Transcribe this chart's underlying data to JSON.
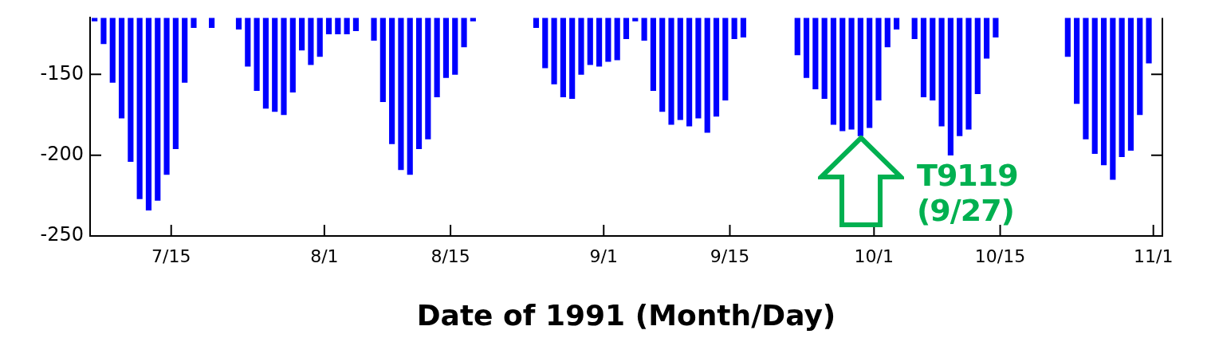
{
  "chart_data": {
    "type": "bar",
    "xlabel": "Date of 1991 (Month/Day)",
    "color": "#0000ff",
    "legend": false,
    "grid": false,
    "annotations": [
      "T9119\n(9/27)"
    ],
    "xlim": [
      "1991-07-06",
      "1991-11-02"
    ],
    "xticks": [
      {
        "value": "1991-07-15",
        "label": "7/15"
      },
      {
        "value": "1991-08-01",
        "label": "8/1"
      },
      {
        "value": "1991-08-15",
        "label": "8/15"
      },
      {
        "value": "1991-09-01",
        "label": "9/1"
      },
      {
        "value": "1991-09-15",
        "label": "9/15"
      },
      {
        "value": "1991-10-01",
        "label": "10/1"
      },
      {
        "value": "1991-10-15",
        "label": "10/15"
      },
      {
        "value": "1991-11-01",
        "label": "11/1"
      }
    ],
    "ylim": [
      -250,
      -115
    ],
    "yticks": [
      -150,
      -200,
      -250
    ],
    "x": [
      "1991-07-06T12:00",
      "1991-07-07T12:00",
      "1991-07-08T12:00",
      "1991-07-09T12:00",
      "1991-07-10T12:00",
      "1991-07-11T12:00",
      "1991-07-12T12:00",
      "1991-07-13T12:00",
      "1991-07-14T12:00",
      "1991-07-15T12:00",
      "1991-07-16T12:00",
      "1991-07-17T12:00",
      "1991-07-19T12:00",
      "1991-07-22T12:00",
      "1991-07-23T12:00",
      "1991-07-24T12:00",
      "1991-07-25T12:00",
      "1991-07-26T12:00",
      "1991-07-27T12:00",
      "1991-07-28T12:00",
      "1991-07-29T12:00",
      "1991-07-30T12:00",
      "1991-07-31T12:00",
      "1991-08-01T12:00",
      "1991-08-02T12:00",
      "1991-08-03T12:00",
      "1991-08-04T12:00",
      "1991-08-06T12:00",
      "1991-08-07T12:00",
      "1991-08-08T12:00",
      "1991-08-09T12:00",
      "1991-08-10T12:00",
      "1991-08-11T12:00",
      "1991-08-12T12:00",
      "1991-08-13T12:00",
      "1991-08-14T12:00",
      "1991-08-15T12:00",
      "1991-08-16T12:00",
      "1991-08-17T12:00",
      "1991-08-24T12:00",
      "1991-08-25T12:00",
      "1991-08-26T12:00",
      "1991-08-27T12:00",
      "1991-08-28T12:00",
      "1991-08-29T12:00",
      "1991-08-30T12:00",
      "1991-08-31T12:00",
      "1991-09-01T12:00",
      "1991-09-02T12:00",
      "1991-09-03T12:00",
      "1991-09-04T12:00",
      "1991-09-05T12:00",
      "1991-09-06T12:00",
      "1991-09-07T12:00",
      "1991-09-08T12:00",
      "1991-09-09T12:00",
      "1991-09-10T12:00",
      "1991-09-11T12:00",
      "1991-09-12T12:00",
      "1991-09-13T12:00",
      "1991-09-14T12:00",
      "1991-09-15T12:00",
      "1991-09-16T12:00",
      "1991-09-22T12:00",
      "1991-09-23T12:00",
      "1991-09-24T12:00",
      "1991-09-25T12:00",
      "1991-09-26T12:00",
      "1991-09-27T12:00",
      "1991-09-28T12:00",
      "1991-09-29T12:00",
      "1991-09-30T12:00",
      "1991-10-01T12:00",
      "1991-10-02T12:00",
      "1991-10-03T12:00",
      "1991-10-05T12:00",
      "1991-10-06T12:00",
      "1991-10-07T12:00",
      "1991-10-08T12:00",
      "1991-10-09T12:00",
      "1991-10-10T12:00",
      "1991-10-11T12:00",
      "1991-10-12T12:00",
      "1991-10-13T12:00",
      "1991-10-14T12:00",
      "1991-10-22T12:00",
      "1991-10-23T12:00",
      "1991-10-24T12:00",
      "1991-10-25T12:00",
      "1991-10-26T12:00",
      "1991-10-27T12:00",
      "1991-10-28T12:00",
      "1991-10-29T12:00",
      "1991-10-30T12:00",
      "1991-10-31T12:00"
    ],
    "values": [
      -117,
      -131,
      -155,
      -177,
      -204,
      -227,
      -234,
      -228,
      -212,
      -196,
      -155,
      -121,
      -121,
      -122,
      -145,
      -160,
      -171,
      -173,
      -175,
      -161,
      -135,
      -144,
      -139,
      -125,
      -125,
      -125,
      -123,
      -129,
      -167,
      -193,
      -209,
      -212,
      -196,
      -190,
      -164,
      -152,
      -150,
      -133,
      -117,
      -121,
      -146,
      -156,
      -164,
      -165,
      -150,
      -144,
      -145,
      -142,
      -141,
      -128,
      -117,
      -129,
      -160,
      -173,
      -181,
      -178,
      -182,
      -177,
      -186,
      -176,
      -166,
      -128,
      -127,
      -138,
      -152,
      -159,
      -165,
      -181,
      -185,
      -184,
      -188,
      -183,
      -166,
      -133,
      -122,
      -128,
      -164,
      -166,
      -182,
      -200,
      -188,
      -184,
      -162,
      -140,
      -127,
      -139,
      -168,
      -190,
      -199,
      -206,
      -215,
      -201,
      -197,
      -175,
      -143
    ]
  }
}
